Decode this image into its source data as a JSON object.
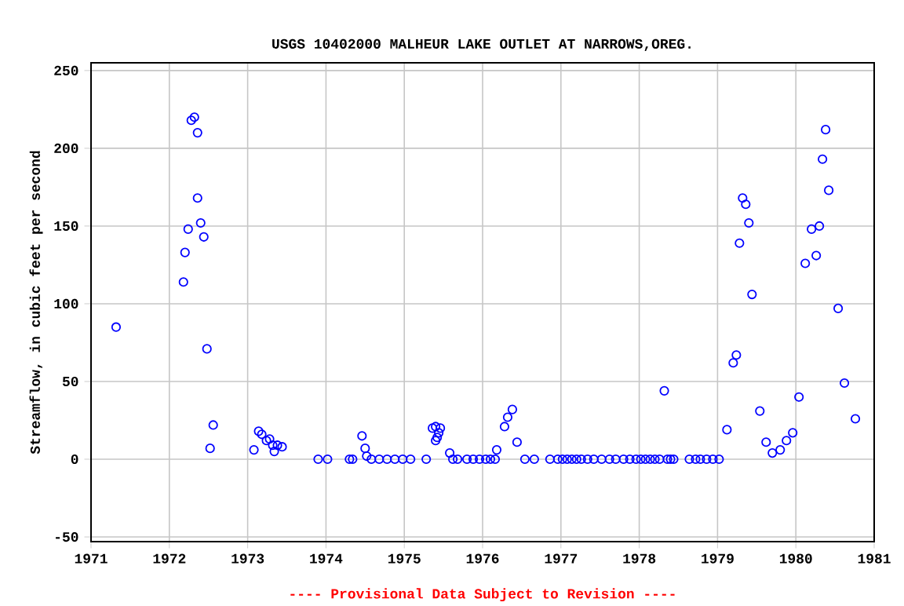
{
  "chart_data": {
    "type": "scatter",
    "title": "USGS 10402000 MALHEUR LAKE OUTLET AT NARROWS,OREG.",
    "ylabel": "Streamflow, in cubic feet per second",
    "annotations": [
      "---- Provisional Data Subject to Revision ----"
    ],
    "xlim": [
      1971,
      1981
    ],
    "xticks": [
      1971,
      1972,
      1973,
      1974,
      1975,
      1976,
      1977,
      1978,
      1979,
      1980,
      1981
    ],
    "ylim": [
      -53,
      255
    ],
    "yticks": [
      -50,
      0,
      50,
      100,
      150,
      200,
      250
    ],
    "grid": true,
    "marker": "circle",
    "series": [
      {
        "color": "#0000ff",
        "x": [
          1971.32,
          1972.18,
          1972.2,
          1972.24,
          1972.28,
          1972.32,
          1972.36,
          1972.36,
          1972.4,
          1972.44,
          1972.48,
          1972.52,
          1972.56,
          1973.08,
          1973.14,
          1973.18,
          1973.24,
          1973.28,
          1973.32,
          1973.34,
          1973.38,
          1973.44,
          1973.9,
          1974.02,
          1974.3,
          1974.34,
          1974.46,
          1974.5,
          1974.52,
          1974.58,
          1974.68,
          1974.78,
          1974.88,
          1974.98,
          1975.08,
          1975.28,
          1975.36,
          1975.4,
          1975.42,
          1975.44,
          1975.46,
          1975.4,
          1975.58,
          1975.62,
          1975.68,
          1975.8,
          1975.88,
          1975.96,
          1976.04,
          1976.1,
          1976.16,
          1976.18,
          1976.28,
          1976.32,
          1976.38,
          1976.44,
          1976.54,
          1976.66,
          1976.86,
          1976.96,
          1977.02,
          1977.08,
          1977.14,
          1977.2,
          1977.26,
          1977.34,
          1977.42,
          1977.52,
          1977.62,
          1977.7,
          1977.8,
          1977.88,
          1977.96,
          1978.02,
          1978.08,
          1978.14,
          1978.2,
          1978.26,
          1978.32,
          1978.36,
          1978.4,
          1978.44,
          1978.64,
          1978.72,
          1978.78,
          1978.86,
          1978.94,
          1979.02,
          1979.12,
          1979.2,
          1979.24,
          1979.28,
          1979.32,
          1979.36,
          1979.4,
          1979.44,
          1979.54,
          1979.62,
          1979.7,
          1979.8,
          1979.88,
          1979.96,
          1980.04,
          1980.12,
          1980.2,
          1980.26,
          1980.3,
          1980.34,
          1980.38,
          1980.42,
          1980.54,
          1980.62,
          1980.76
        ],
        "values": [
          85,
          114,
          133,
          148,
          218,
          220,
          210,
          168,
          152,
          143,
          71,
          7,
          22,
          6,
          18,
          16,
          12,
          13,
          9,
          5,
          9,
          8,
          0,
          0,
          0,
          0,
          15,
          7,
          2,
          0,
          0,
          0,
          0,
          0,
          0,
          0,
          20,
          21,
          14,
          17,
          20,
          12,
          4,
          0,
          0,
          0,
          0,
          0,
          0,
          0,
          0,
          6,
          21,
          27,
          32,
          11,
          0,
          0,
          0,
          0,
          0,
          0,
          0,
          0,
          0,
          0,
          0,
          0,
          0,
          0,
          0,
          0,
          0,
          0,
          0,
          0,
          0,
          0,
          44,
          0,
          0,
          0,
          0,
          0,
          0,
          0,
          0,
          0,
          19,
          62,
          67,
          139,
          168,
          164,
          152,
          106,
          31,
          11,
          4,
          6,
          12,
          17,
          40,
          126,
          148,
          131,
          150,
          193,
          212,
          173,
          97,
          49,
          26
        ]
      }
    ]
  }
}
